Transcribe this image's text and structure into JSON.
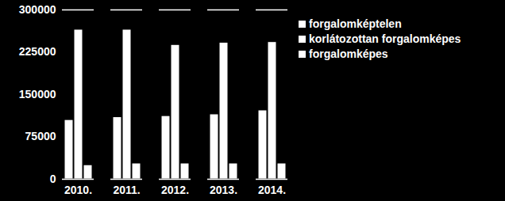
{
  "chart_data": {
    "type": "bar",
    "categories": [
      "2010.",
      "2011.",
      "2012.",
      "2013.",
      "2014."
    ],
    "series": [
      {
        "name": "forgalomképtelen",
        "color": "#ffffff",
        "values": [
          105000,
          110000,
          112000,
          115000,
          122000
        ]
      },
      {
        "name": "korlátozottan forgalomképes",
        "color": "#ffffff",
        "values": [
          265000,
          265000,
          238000,
          242000,
          243000
        ]
      },
      {
        "name": "forgalomképes",
        "color": "#ffffff",
        "values": [
          25000,
          28000,
          28000,
          28000,
          28000
        ]
      }
    ],
    "ylim": [
      0,
      300000
    ],
    "yticks": [
      0,
      75000,
      150000,
      225000,
      300000
    ],
    "grid": false,
    "legend": "right"
  }
}
